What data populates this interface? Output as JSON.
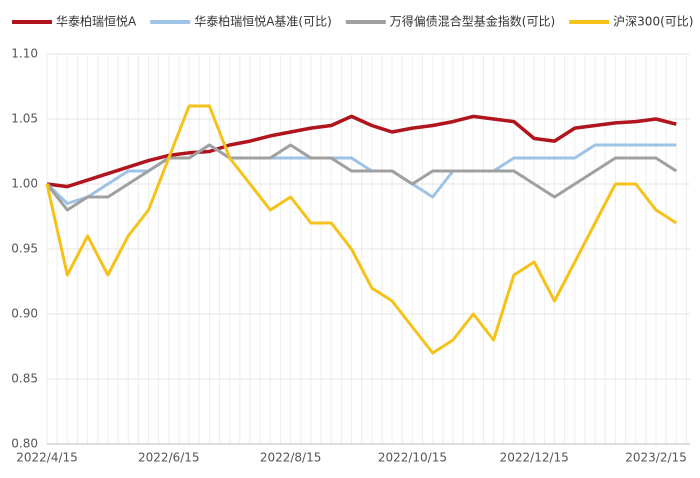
{
  "chart_data": {
    "type": "line",
    "categories": [
      "2022/4/15",
      null,
      null,
      null,
      null,
      null,
      "2022/6/15",
      null,
      null,
      null,
      null,
      null,
      "2022/8/15",
      null,
      null,
      null,
      null,
      null,
      "2022/10/15",
      null,
      null,
      null,
      null,
      null,
      "2022/12/15",
      null,
      null,
      null,
      null,
      null,
      "2023/2/15",
      null
    ],
    "series": [
      {
        "name": "华泰柏瑞恒悦A",
        "color": "#b0141c",
        "values": [
          1.0,
          0.998,
          1.003,
          1.008,
          1.013,
          1.018,
          1.022,
          1.024,
          1.025,
          1.03,
          1.033,
          1.037,
          1.04,
          1.043,
          1.045,
          1.052,
          1.045,
          1.04,
          1.043,
          1.045,
          1.048,
          1.052,
          1.05,
          1.048,
          1.035,
          1.033,
          1.043,
          1.045,
          1.047,
          1.048,
          1.05,
          1.046
        ]
      },
      {
        "name": "华泰柏瑞恒悦A基准(可比)",
        "color": "#9ec3e6",
        "values": [
          1.0,
          0.985,
          0.99,
          1.0,
          1.01,
          1.01,
          1.02,
          1.02,
          1.03,
          1.02,
          1.02,
          1.02,
          1.02,
          1.02,
          1.02,
          1.02,
          1.01,
          1.01,
          1.0,
          0.99,
          1.01,
          1.01,
          1.01,
          1.02,
          1.02,
          1.02,
          1.02,
          1.03,
          1.03,
          1.03,
          1.03,
          1.03
        ]
      },
      {
        "name": "万得偏债混合型基金指数(可比)",
        "color": "#a0a0a0",
        "values": [
          1.0,
          0.98,
          0.99,
          0.99,
          1.0,
          1.01,
          1.02,
          1.02,
          1.03,
          1.02,
          1.02,
          1.02,
          1.03,
          1.02,
          1.02,
          1.01,
          1.01,
          1.01,
          1.0,
          1.01,
          1.01,
          1.01,
          1.01,
          1.01,
          1.0,
          0.99,
          1.0,
          1.01,
          1.02,
          1.02,
          1.02,
          1.01
        ]
      },
      {
        "name": "沪深300(可比)",
        "color": "#f6c21a",
        "values": [
          1.0,
          0.93,
          0.96,
          0.93,
          0.96,
          0.98,
          1.02,
          1.06,
          1.06,
          1.02,
          1.0,
          0.98,
          0.99,
          0.97,
          0.97,
          0.95,
          0.92,
          0.91,
          0.89,
          0.87,
          0.88,
          0.9,
          0.88,
          0.93,
          0.94,
          0.91,
          0.94,
          0.97,
          1.0,
          1.0,
          0.98,
          0.97
        ]
      }
    ],
    "ylim": [
      0.8,
      1.1
    ],
    "yticks": [
      {
        "value": 0.8,
        "label": "0.80"
      },
      0.85,
      {
        "value": 0.9,
        "label": "0.90"
      },
      0.95,
      {
        "value": 1.0,
        "label": "1.00"
      },
      1.05,
      {
        "value": 1.1,
        "label": "1.10"
      }
    ],
    "grid": true
  }
}
